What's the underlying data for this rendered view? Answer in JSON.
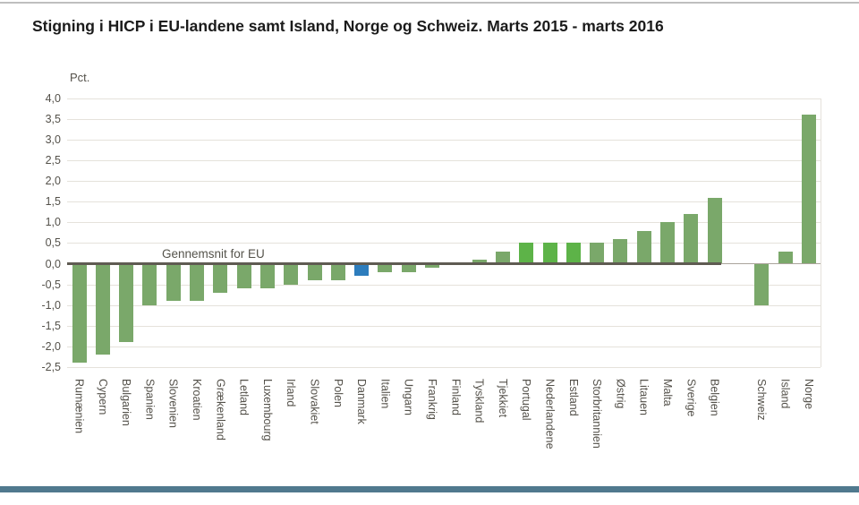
{
  "page": {
    "title": "Stigning i HICP i EU-landene samt Island, Norge og Schweiz. Marts 2015 - marts 2016"
  },
  "chart_data": {
    "type": "bar",
    "title": "Stigning i HICP i EU-landene samt Island, Norge og Schweiz. Marts 2015 - marts 2016",
    "xlabel": "",
    "ylabel": "Pct.",
    "ylim": [
      -2.5,
      4.0
    ],
    "ytick_step": 0.5,
    "grid": true,
    "legend": "none",
    "yticks": [
      "4,0",
      "3,5",
      "3,0",
      "2,5",
      "2,0",
      "1,5",
      "1,0",
      "0,5",
      "0,0",
      "-0,5",
      "-1,0",
      "-1,5",
      "-2,0",
      "-2,5"
    ],
    "eu_average_annotation": {
      "label": "Gennemsnit for EU",
      "value": 0.0
    },
    "bars": [
      {
        "label": "Rumænien",
        "value": -2.4
      },
      {
        "label": "Cypern",
        "value": -2.2
      },
      {
        "label": "Bulgarien",
        "value": -1.9
      },
      {
        "label": "Spanien",
        "value": -1.0
      },
      {
        "label": "Slovenien",
        "value": -0.9
      },
      {
        "label": "Kroatien",
        "value": -0.9
      },
      {
        "label": "Grækenland",
        "value": -0.7
      },
      {
        "label": "Letland",
        "value": -0.6
      },
      {
        "label": "Luxembourg",
        "value": -0.6
      },
      {
        "label": "Irland",
        "value": -0.5
      },
      {
        "label": "Slovakiet",
        "value": -0.4
      },
      {
        "label": "Polen",
        "value": -0.4
      },
      {
        "label": "Danmark",
        "value": -0.3,
        "color": "blue"
      },
      {
        "label": "Italien",
        "value": -0.2
      },
      {
        "label": "Ungarn",
        "value": -0.2
      },
      {
        "label": "Frankrig",
        "value": -0.1
      },
      {
        "label": "Finland",
        "value": 0.0
      },
      {
        "label": "Tyskland",
        "value": 0.1
      },
      {
        "label": "Tjekkiet",
        "value": 0.3
      },
      {
        "label": "Portugal",
        "value": 0.5,
        "color": "bright"
      },
      {
        "label": "Nederlandene",
        "value": 0.5,
        "color": "bright"
      },
      {
        "label": "Estland",
        "value": 0.5,
        "color": "bright"
      },
      {
        "label": "Storbritannien",
        "value": 0.5
      },
      {
        "label": "Østrig",
        "value": 0.6
      },
      {
        "label": "Litauen",
        "value": 0.8
      },
      {
        "label": "Malta",
        "value": 1.0
      },
      {
        "label": "Sverige",
        "value": 1.2
      },
      {
        "label": "Belgien",
        "value": 1.6
      },
      {
        "label": "Schweiz",
        "value": -1.0,
        "gap_before": true
      },
      {
        "label": "Island",
        "value": 0.3
      },
      {
        "label": "Norge",
        "value": 3.6
      }
    ]
  },
  "colors": {
    "bar_green": "#7aa86a",
    "bar_green_bright": "#5db348",
    "bar_blue": "#2d7dbd",
    "eu_average_line": "#5f5b52",
    "zero_line": "#aaa49b",
    "gridline": "#e5e2db",
    "axis_text": "#54514a",
    "title_text": "#1b1b1b",
    "footer_band": "#50798e",
    "top_border": "#bfbfbf"
  }
}
